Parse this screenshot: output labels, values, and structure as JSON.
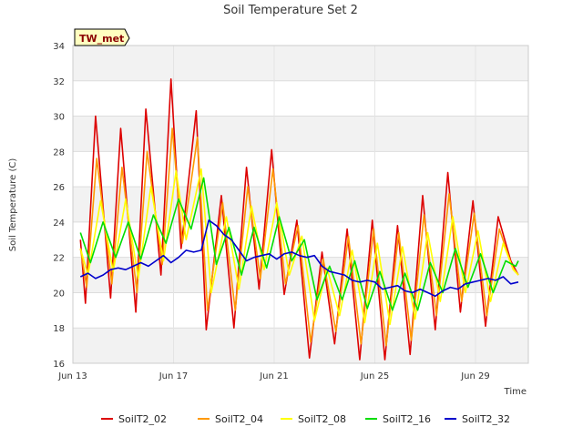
{
  "chart_data": {
    "type": "line",
    "title": "Soil Temperature Set 2",
    "xlabel": "Time",
    "ylabel": "Soil Temperature (C)",
    "badge": "TW_met",
    "ylim": [
      16,
      34
    ],
    "yticks": [
      16,
      18,
      20,
      22,
      24,
      26,
      28,
      30,
      32,
      34
    ],
    "xlim": [
      0,
      18.1
    ],
    "xticks": [
      {
        "label": "Jun 13",
        "day": 0
      },
      {
        "label": "Jun 17",
        "day": 4
      },
      {
        "label": "Jun 21",
        "day": 8
      },
      {
        "label": "Jun 25",
        "day": 12
      },
      {
        "label": "Jun 29",
        "day": 16
      }
    ],
    "legend_position": "bottom",
    "grid": true,
    "series": [
      {
        "name": "SoilT2_02",
        "color": "#dd0000",
        "x": [
          0.3,
          0.5,
          0.9,
          1.5,
          1.9,
          2.5,
          2.9,
          3.5,
          3.9,
          4.3,
          4.9,
          5.3,
          5.9,
          6.4,
          6.9,
          7.4,
          7.9,
          8.4,
          8.9,
          9.4,
          9.9,
          10.4,
          10.9,
          11.4,
          11.9,
          12.4,
          12.9,
          13.4,
          13.9,
          14.4,
          14.9,
          15.4,
          15.9,
          16.4,
          16.9,
          17.4,
          17.7
        ],
        "y": [
          23.0,
          19.4,
          30.0,
          19.7,
          29.3,
          18.9,
          30.4,
          21.0,
          32.1,
          22.5,
          30.3,
          17.9,
          25.5,
          18.0,
          27.1,
          20.2,
          28.1,
          19.9,
          24.1,
          16.3,
          22.3,
          17.1,
          23.6,
          16.2,
          24.1,
          16.2,
          23.8,
          16.5,
          25.5,
          17.9,
          26.8,
          18.9,
          25.2,
          18.1,
          24.3,
          21.8,
          21.0
        ]
      },
      {
        "name": "SoilT2_04",
        "color": "#ff9900",
        "x": [
          0.3,
          0.55,
          0.95,
          1.55,
          1.95,
          2.55,
          2.95,
          3.55,
          3.95,
          4.35,
          4.95,
          5.35,
          5.95,
          6.45,
          6.95,
          7.45,
          7.95,
          8.45,
          8.95,
          9.45,
          9.95,
          10.45,
          10.95,
          11.45,
          11.95,
          12.45,
          12.95,
          13.45,
          13.95,
          14.45,
          14.95,
          15.45,
          15.95,
          16.45,
          16.95,
          17.45,
          17.7
        ],
        "y": [
          22.5,
          20.3,
          27.6,
          20.5,
          27.1,
          20.0,
          28.0,
          21.6,
          29.3,
          22.8,
          28.8,
          19.0,
          25.1,
          19.0,
          26.0,
          20.8,
          27.0,
          20.5,
          23.8,
          17.2,
          21.9,
          17.8,
          23.2,
          17.1,
          23.6,
          17.0,
          23.4,
          17.3,
          24.4,
          18.7,
          25.6,
          19.5,
          24.5,
          18.7,
          23.6,
          21.5,
          21.0
        ]
      },
      {
        "name": "SoilT2_08",
        "color": "#ffff00",
        "x": [
          0.3,
          0.6,
          1.1,
          1.6,
          2.1,
          2.6,
          3.1,
          3.6,
          4.1,
          4.5,
          5.1,
          5.5,
          6.1,
          6.6,
          7.1,
          7.6,
          8.1,
          8.6,
          9.1,
          9.6,
          10.1,
          10.6,
          11.1,
          11.6,
          12.1,
          12.6,
          13.1,
          13.6,
          14.1,
          14.6,
          15.1,
          15.6,
          16.1,
          16.6,
          17.1,
          17.5,
          17.7
        ],
        "y": [
          22.5,
          21.0,
          25.2,
          21.2,
          25.3,
          20.8,
          26.0,
          21.8,
          26.9,
          23.0,
          27.0,
          20.0,
          24.3,
          20.2,
          24.9,
          21.3,
          25.1,
          21.0,
          23.2,
          18.4,
          21.4,
          18.7,
          22.4,
          18.3,
          22.8,
          18.2,
          22.6,
          18.5,
          23.4,
          19.5,
          24.3,
          20.0,
          23.5,
          19.5,
          22.8,
          21.3,
          21.0
        ]
      },
      {
        "name": "SoilT2_16",
        "color": "#00dd00",
        "x": [
          0.3,
          0.7,
          1.2,
          1.7,
          2.2,
          2.7,
          3.2,
          3.7,
          4.2,
          4.7,
          5.2,
          5.7,
          6.2,
          6.7,
          7.2,
          7.7,
          8.2,
          8.7,
          9.2,
          9.7,
          10.2,
          10.7,
          11.2,
          11.7,
          12.2,
          12.7,
          13.2,
          13.7,
          14.2,
          14.7,
          15.2,
          15.7,
          16.2,
          16.7,
          17.2,
          17.6,
          17.7
        ],
        "y": [
          23.4,
          21.7,
          24.0,
          22.0,
          24.0,
          21.9,
          24.4,
          22.8,
          25.3,
          23.6,
          26.5,
          21.6,
          23.7,
          21.0,
          23.7,
          21.4,
          24.3,
          21.8,
          23.0,
          19.6,
          21.5,
          19.6,
          21.8,
          19.1,
          21.2,
          19.0,
          21.1,
          19.0,
          21.7,
          20.0,
          22.5,
          20.3,
          22.2,
          20.0,
          21.8,
          21.5,
          21.8
        ]
      },
      {
        "name": "SoilT2_32",
        "color": "#0000cc",
        "x": [
          0.3,
          0.6,
          0.9,
          1.2,
          1.5,
          1.8,
          2.1,
          2.4,
          2.7,
          3.0,
          3.3,
          3.6,
          3.9,
          4.2,
          4.5,
          4.8,
          5.1,
          5.4,
          5.7,
          6.0,
          6.3,
          6.6,
          6.9,
          7.2,
          7.5,
          7.8,
          8.1,
          8.4,
          8.7,
          9.0,
          9.3,
          9.6,
          9.9,
          10.2,
          10.5,
          10.8,
          11.1,
          11.4,
          11.7,
          12.0,
          12.3,
          12.6,
          12.9,
          13.2,
          13.5,
          13.8,
          14.1,
          14.4,
          14.7,
          15.0,
          15.3,
          15.6,
          15.9,
          16.2,
          16.5,
          16.8,
          17.1,
          17.4,
          17.7
        ],
        "y": [
          20.9,
          21.1,
          20.8,
          21.0,
          21.3,
          21.4,
          21.3,
          21.5,
          21.7,
          21.5,
          21.8,
          22.1,
          21.7,
          22.0,
          22.4,
          22.3,
          22.4,
          24.1,
          23.8,
          23.3,
          23.0,
          22.4,
          21.8,
          22.0,
          22.1,
          22.2,
          21.9,
          22.2,
          22.3,
          22.1,
          22.0,
          22.1,
          21.5,
          21.2,
          21.1,
          21.0,
          20.7,
          20.6,
          20.7,
          20.6,
          20.2,
          20.3,
          20.4,
          20.1,
          20.0,
          20.2,
          20.0,
          19.8,
          20.1,
          20.3,
          20.2,
          20.5,
          20.6,
          20.7,
          20.8,
          20.7,
          20.9,
          20.5,
          20.6
        ]
      }
    ]
  }
}
